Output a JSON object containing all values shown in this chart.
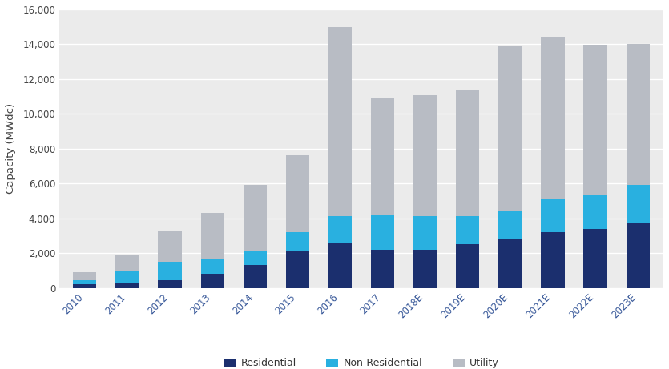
{
  "categories": [
    "2010",
    "2011",
    "2012",
    "2013",
    "2014",
    "2015",
    "2016",
    "2017",
    "2018E",
    "2019E",
    "2020E",
    "2021E",
    "2022E",
    "2023E"
  ],
  "residential": [
    200,
    300,
    450,
    800,
    1300,
    2100,
    2600,
    2200,
    2200,
    2500,
    2800,
    3200,
    3400,
    3750
  ],
  "non_residential": [
    250,
    650,
    1050,
    900,
    850,
    1100,
    1500,
    2000,
    1900,
    1600,
    1650,
    1900,
    1900,
    2150
  ],
  "utility": [
    450,
    950,
    1800,
    2600,
    3750,
    4400,
    10900,
    6750,
    6950,
    7300,
    9450,
    9350,
    8650,
    8100
  ],
  "colors": {
    "residential": "#1b2f6e",
    "non_residential": "#29b0e0",
    "utility": "#b8bcc4"
  },
  "ylabel": "Capacity (MWdc)",
  "ylim": [
    0,
    16000
  ],
  "yticks": [
    0,
    2000,
    4000,
    6000,
    8000,
    10000,
    12000,
    14000,
    16000
  ],
  "legend_labels": [
    "Residential",
    "Non-Residential",
    "Utility"
  ],
  "fig_bg_color": "#ffffff",
  "plot_bg_color": "#ebebeb",
  "bar_width": 0.55
}
